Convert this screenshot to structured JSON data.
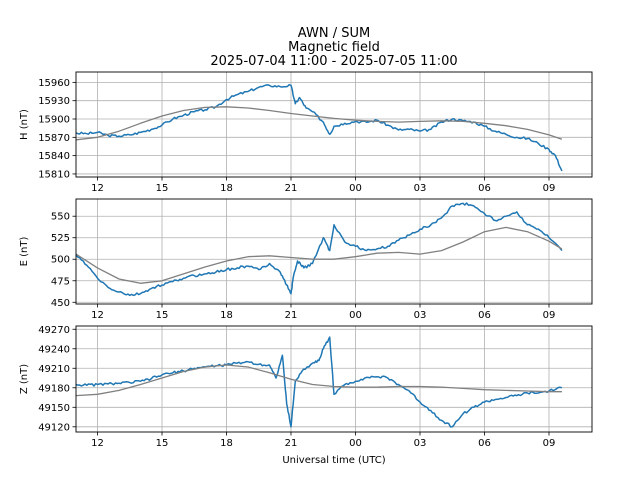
{
  "figure": {
    "title_lines": [
      "AWN / SUM",
      "Magnetic field",
      "2025-07-04 11:00 - 2025-07-05 11:00"
    ],
    "xlabel": "Universal time (UTC)"
  },
  "colors": {
    "measured": "#1f77b4",
    "baseline": "#808080",
    "grid": "#b0b0b0"
  },
  "chart_data": [
    {
      "type": "line",
      "panel": "H",
      "ylabel": "H (nT)",
      "x_ticks": [
        "12",
        "15",
        "18",
        "21",
        "00",
        "03",
        "06",
        "09"
      ],
      "x_tick_hours": [
        1,
        4,
        7,
        10,
        13,
        16,
        19,
        22
      ],
      "xlim_hours": [
        0,
        24
      ],
      "data_end_hour": 22.6,
      "yticks": [
        15810,
        15840,
        15870,
        15900,
        15930,
        15960
      ],
      "ylim": [
        15805,
        15977
      ],
      "grid": true,
      "series": [
        {
          "role": "measured",
          "x": [
            0,
            0.5,
            1,
            1.5,
            2,
            2.5,
            3,
            3.5,
            4,
            4.5,
            5,
            5.5,
            6,
            6.5,
            7,
            7.5,
            8,
            8.5,
            9,
            9.5,
            10,
            10.2,
            10.4,
            10.7,
            11,
            11.5,
            11.8,
            12,
            12.5,
            13,
            13.5,
            14,
            14.5,
            15,
            15.5,
            16,
            16.5,
            17,
            17.5,
            18,
            18.5,
            19,
            19.5,
            20,
            20.5,
            21,
            21.5,
            22,
            22.3,
            22.6
          ],
          "values": [
            15877,
            15876,
            15878,
            15873,
            15872,
            15874,
            15878,
            15883,
            15890,
            15900,
            15906,
            15912,
            15915,
            15920,
            15932,
            15940,
            15945,
            15952,
            15955,
            15953,
            15955,
            15925,
            15935,
            15918,
            15912,
            15895,
            15875,
            15888,
            15893,
            15896,
            15895,
            15898,
            15890,
            15882,
            15883,
            15880,
            15883,
            15895,
            15900,
            15897,
            15895,
            15888,
            15880,
            15875,
            15870,
            15868,
            15860,
            15850,
            15840,
            15815
          ]
        },
        {
          "role": "baseline",
          "x": [
            0,
            1,
            2,
            3,
            4,
            5,
            6,
            7,
            8,
            9,
            10,
            11,
            12,
            13,
            14,
            15,
            16,
            17,
            18,
            19,
            20,
            21,
            22,
            22.6
          ],
          "values": [
            15866,
            15870,
            15880,
            15893,
            15905,
            15914,
            15919,
            15920,
            15918,
            15914,
            15909,
            15905,
            15901,
            15898,
            15896,
            15895,
            15896,
            15897,
            15896,
            15893,
            15889,
            15883,
            15874,
            15867
          ]
        }
      ]
    },
    {
      "type": "line",
      "panel": "E",
      "ylabel": "E (nT)",
      "x_ticks": [
        "12",
        "15",
        "18",
        "21",
        "00",
        "03",
        "06",
        "09"
      ],
      "x_tick_hours": [
        1,
        4,
        7,
        10,
        13,
        16,
        19,
        22
      ],
      "xlim_hours": [
        0,
        24
      ],
      "data_end_hour": 22.6,
      "yticks": [
        450,
        475,
        500,
        525,
        550
      ],
      "ylim": [
        448,
        570
      ],
      "grid": true,
      "series": [
        {
          "role": "measured",
          "x": [
            0,
            0.5,
            1,
            1.5,
            2,
            2.5,
            3,
            3.5,
            4,
            4.5,
            5,
            5.5,
            6,
            6.5,
            7,
            7.5,
            8,
            8.5,
            9,
            9.5,
            9.8,
            10,
            10.1,
            10.3,
            10.6,
            11,
            11.5,
            11.8,
            12,
            12.5,
            13,
            13.5,
            14,
            14.5,
            15,
            15.5,
            16,
            16.5,
            17,
            17.5,
            18,
            18.5,
            19,
            19.5,
            20,
            20.5,
            21,
            21.5,
            22,
            22.6
          ],
          "values": [
            505,
            493,
            478,
            467,
            462,
            458,
            460,
            466,
            470,
            474,
            478,
            481,
            483,
            485,
            488,
            490,
            492,
            488,
            495,
            485,
            470,
            460,
            478,
            498,
            490,
            495,
            525,
            510,
            540,
            520,
            515,
            510,
            512,
            515,
            522,
            528,
            535,
            540,
            548,
            562,
            565,
            562,
            553,
            545,
            550,
            555,
            540,
            535,
            525,
            510
          ]
        },
        {
          "role": "baseline",
          "x": [
            0,
            1,
            2,
            3,
            4,
            5,
            6,
            7,
            8,
            9,
            10,
            11,
            12,
            13,
            14,
            15,
            16,
            17,
            18,
            19,
            20,
            21,
            22,
            22.6
          ],
          "values": [
            506,
            490,
            477,
            472,
            475,
            483,
            491,
            498,
            503,
            504,
            502,
            500,
            500,
            503,
            507,
            508,
            506,
            510,
            520,
            532,
            537,
            532,
            521,
            512
          ]
        }
      ]
    },
    {
      "type": "line",
      "panel": "Z",
      "ylabel": "Z (nT)",
      "x_ticks": [
        "12",
        "15",
        "18",
        "21",
        "00",
        "03",
        "06",
        "09"
      ],
      "x_tick_hours": [
        1,
        4,
        7,
        10,
        13,
        16,
        19,
        22
      ],
      "xlim_hours": [
        0,
        24
      ],
      "data_end_hour": 22.6,
      "xlabel": "Universal time (UTC)",
      "yticks": [
        49120,
        49150,
        49180,
        49210,
        49240,
        49270
      ],
      "ylim": [
        49112,
        49275
      ],
      "grid": true,
      "series": [
        {
          "role": "measured",
          "x": [
            0,
            0.5,
            1,
            1.5,
            2,
            2.5,
            3,
            3.5,
            4,
            4.5,
            5,
            5.5,
            6,
            6.5,
            7,
            7.5,
            8,
            8.5,
            9,
            9.3,
            9.6,
            9.8,
            10,
            10.2,
            10.5,
            11,
            11.3,
            11.5,
            11.8,
            12,
            12.5,
            13,
            13.5,
            14,
            14.5,
            15,
            15.5,
            16,
            16.5,
            17,
            17.5,
            18,
            18.5,
            19,
            19.5,
            20,
            20.5,
            21,
            21.5,
            22,
            22.6
          ],
          "values": [
            49185,
            49184,
            49185,
            49186,
            49187,
            49188,
            49190,
            49194,
            49200,
            49203,
            49206,
            49210,
            49212,
            49214,
            49215,
            49218,
            49220,
            49216,
            49215,
            49195,
            49230,
            49155,
            49120,
            49190,
            49205,
            49218,
            49222,
            49240,
            49258,
            49170,
            49185,
            49190,
            49196,
            49197,
            49195,
            49185,
            49175,
            49158,
            49145,
            49130,
            49120,
            49140,
            49150,
            49158,
            49162,
            49165,
            49168,
            49172,
            49172,
            49175,
            49180
          ]
        },
        {
          "role": "baseline",
          "x": [
            0,
            1,
            2,
            3,
            4,
            5,
            6,
            7,
            8,
            9,
            10,
            11,
            12,
            13,
            14,
            15,
            16,
            17,
            18,
            19,
            20,
            21,
            22,
            22.6
          ],
          "values": [
            49168,
            49170,
            49176,
            49185,
            49195,
            49205,
            49212,
            49215,
            49212,
            49203,
            49193,
            49185,
            49182,
            49181,
            49181,
            49182,
            49182,
            49181,
            49179,
            49177,
            49176,
            49175,
            49174,
            49174
          ]
        }
      ]
    }
  ]
}
